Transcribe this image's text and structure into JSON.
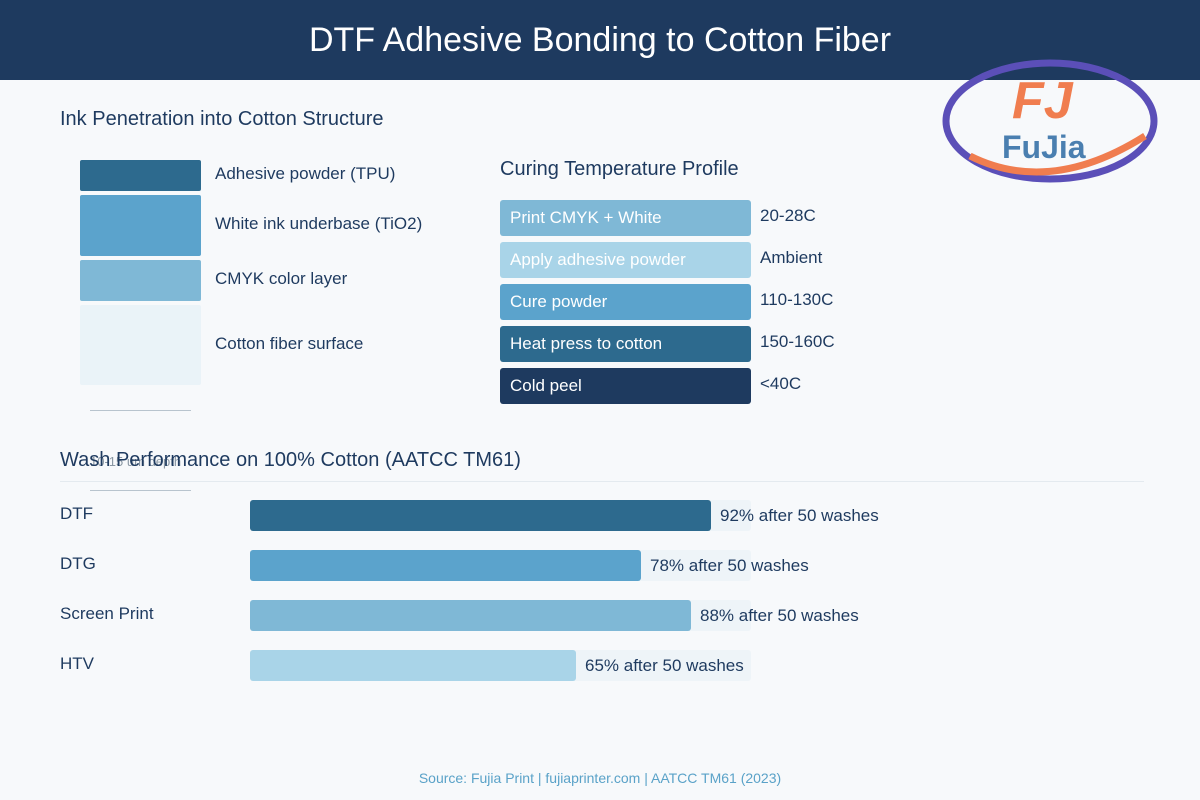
{
  "title": "DTF Adhesive Bonding to Cotton Fiber",
  "logo": {
    "letters": "FJ",
    "name": "FuJia"
  },
  "layers": {
    "title": "Ink Penetration into Cotton Structure",
    "items": [
      {
        "label": "Adhesive powder (TPU)",
        "color": "#2d6a8e"
      },
      {
        "label": "White ink underbase (TiO2)",
        "color": "#5ba3cc"
      },
      {
        "label": "CMYK color layer",
        "color": "#7fb8d6"
      },
      {
        "label": "Cotton fiber surface",
        "color": "#eaf3f8"
      }
    ],
    "depth_label": "10-15 um depth"
  },
  "curing": {
    "title": "Curing Temperature Profile",
    "steps": [
      {
        "label": "Print CMYK + White",
        "temp": "20-28C",
        "color": "#7fb8d6"
      },
      {
        "label": "Apply adhesive powder",
        "temp": "Ambient",
        "color": "#a9d4e8"
      },
      {
        "label": "Cure powder",
        "temp": "110-130C",
        "color": "#5ba3cc"
      },
      {
        "label": "Heat press to cotton",
        "temp": "150-160C",
        "color": "#2d6a8e"
      },
      {
        "label": "Cold peel",
        "temp": "<40C",
        "color": "#1e3a5f"
      }
    ]
  },
  "chart_data": {
    "type": "bar",
    "title": "Wash Performance on 100% Cotton (AATCC TM61)",
    "orientation": "horizontal",
    "categories": [
      "DTF",
      "DTG",
      "Screen Print",
      "HTV"
    ],
    "values": [
      92,
      78,
      88,
      65
    ],
    "unit": "%",
    "xlim": [
      0,
      100
    ],
    "data_labels": [
      "92% after 50 washes",
      "78% after 50 washes",
      "88% after 50 washes",
      "65% after 50 washes"
    ],
    "colors": [
      "#2d6a8e",
      "#5ba3cc",
      "#7fb8d6",
      "#a9d4e8"
    ]
  },
  "source": "Source: Fujia Print | fujiaprinter.com | AATCC TM61 (2023)"
}
